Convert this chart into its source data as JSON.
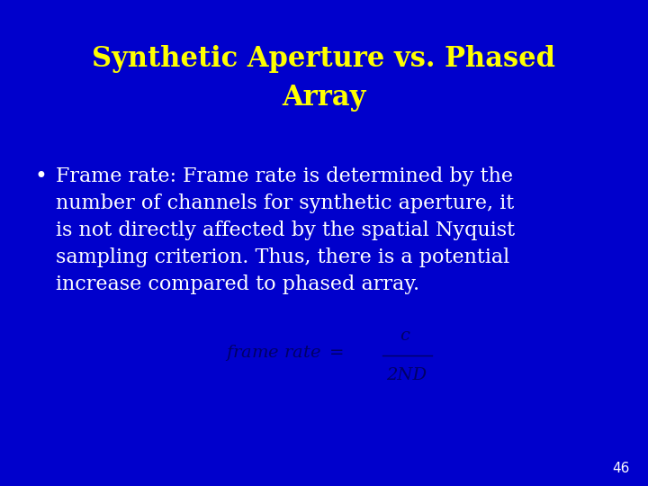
{
  "background_color": "#0000CC",
  "title_line1": "Synthetic Aperture vs. Phased",
  "title_line2": "Array",
  "title_color": "#FFFF00",
  "title_fontsize": 22,
  "bullet_color": "#FFFFFF",
  "bullet_fontsize": 16,
  "formula_color": "#000066",
  "page_number": "46",
  "page_number_color": "#FFFFFF",
  "page_number_fontsize": 11,
  "bullet_lines": [
    "Frame rate: Frame rate is determined by the",
    "number of channels for synthetic aperture, it",
    "is not directly affected by the spatial Nyquist",
    "sampling criterion. Thus, there is a potential",
    "increase compared to phased array."
  ]
}
